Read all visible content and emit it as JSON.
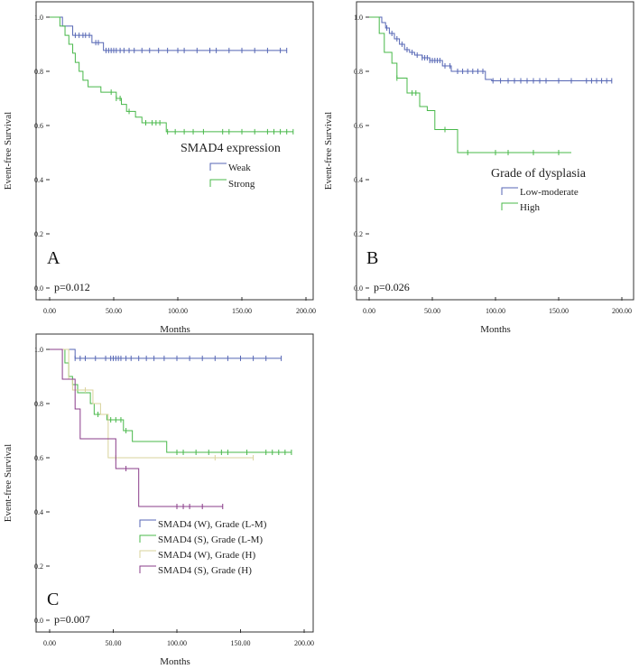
{
  "chart_data": [
    {
      "type": "line",
      "panel_label": "A",
      "xlabel": "Months",
      "ylabel": "Event-free Survival",
      "xlim": [
        0,
        200
      ],
      "ylim": [
        0,
        1
      ],
      "xticks": [
        "0.00",
        "50.00",
        "100.00",
        "150.00",
        "200.00"
      ],
      "yticks": [
        "0.0",
        "0.2",
        "0.4",
        "0.6",
        "0.8",
        "1.0"
      ],
      "legend_title": "SMAD4 expression",
      "legend_position": "center-right",
      "annotation": "p=0.012",
      "series": [
        {
          "name": "Weak",
          "color": "#5566b4",
          "steps": [
            [
              0,
              1.0
            ],
            [
              10,
              0.967
            ],
            [
              18,
              0.933
            ],
            [
              33,
              0.906
            ],
            [
              42,
              0.877
            ]
          ],
          "end_x": 185,
          "censored": [
            20,
            23,
            26,
            28,
            31,
            36,
            38,
            44,
            46,
            48,
            50,
            52,
            55,
            58,
            62,
            66,
            72,
            78,
            85,
            92,
            100,
            105,
            115,
            125,
            130,
            140,
            150,
            160,
            170,
            180,
            185
          ]
        },
        {
          "name": "Strong",
          "color": "#48b84a",
          "steps": [
            [
              0,
              1.0
            ],
            [
              8,
              0.967
            ],
            [
              12,
              0.933
            ],
            [
              15,
              0.9
            ],
            [
              18,
              0.867
            ],
            [
              20,
              0.833
            ],
            [
              23,
              0.8
            ],
            [
              26,
              0.767
            ],
            [
              30,
              0.743
            ],
            [
              40,
              0.723
            ],
            [
              52,
              0.7
            ],
            [
              56,
              0.678
            ],
            [
              60,
              0.652
            ],
            [
              67,
              0.631
            ],
            [
              72,
              0.61
            ],
            [
              91,
              0.577
            ]
          ],
          "end_x": 190,
          "censored": [
            48,
            52,
            55,
            62,
            75,
            80,
            83,
            86,
            92,
            98,
            105,
            112,
            120,
            135,
            140,
            150,
            160,
            170,
            175,
            180,
            185,
            190
          ]
        }
      ]
    },
    {
      "type": "line",
      "panel_label": "B",
      "xlabel": "Months",
      "ylabel": "Event-free Survival",
      "xlim": [
        0,
        200
      ],
      "ylim": [
        0,
        1
      ],
      "xticks": [
        "0.00",
        "50.00",
        "100.00",
        "150.00",
        "200.00"
      ],
      "yticks": [
        "0.0",
        "0.2",
        "0.4",
        "0.6",
        "0.8",
        "1.0"
      ],
      "legend_title": "Grade of dysplasia",
      "legend_position": "center-right",
      "annotation": "p=0.026",
      "series": [
        {
          "name": "Low-moderate",
          "color": "#5566b4",
          "steps": [
            [
              0,
              1.0
            ],
            [
              10,
              0.98
            ],
            [
              13,
              0.96
            ],
            [
              16,
              0.94
            ],
            [
              20,
              0.92
            ],
            [
              24,
              0.9
            ],
            [
              28,
              0.88
            ],
            [
              32,
              0.87
            ],
            [
              36,
              0.86
            ],
            [
              42,
              0.85
            ],
            [
              48,
              0.84
            ],
            [
              58,
              0.82
            ],
            [
              65,
              0.8
            ],
            [
              92,
              0.77
            ],
            [
              97,
              0.765
            ]
          ],
          "end_x": 192,
          "censored": [
            14,
            18,
            22,
            26,
            30,
            34,
            38,
            42,
            44,
            46,
            48,
            50,
            52,
            54,
            56,
            60,
            64,
            70,
            74,
            78,
            82,
            86,
            90,
            98,
            104,
            110,
            115,
            120,
            125,
            130,
            135,
            140,
            150,
            160,
            172,
            176,
            180,
            184,
            188,
            192
          ]
        },
        {
          "name": "High",
          "color": "#48b84a",
          "steps": [
            [
              0,
              1.0
            ],
            [
              8,
              0.94
            ],
            [
              12,
              0.87
            ],
            [
              18,
              0.83
            ],
            [
              22,
              0.775
            ],
            [
              30,
              0.72
            ],
            [
              40,
              0.67
            ],
            [
              46,
              0.655
            ],
            [
              52,
              0.585
            ],
            [
              70,
              0.5
            ]
          ],
          "end_x": 160,
          "censored": [
            22,
            34,
            37,
            60,
            78,
            100,
            110,
            130,
            150
          ]
        }
      ]
    },
    {
      "type": "line",
      "panel_label": "C",
      "xlabel": "Months",
      "ylabel": "Event-free Survival",
      "xlim": [
        0,
        200
      ],
      "ylim": [
        0,
        1
      ],
      "xticks": [
        "0.00",
        "50.00",
        "100.00",
        "150.00",
        "200.00"
      ],
      "yticks": [
        "0.0",
        "0.2",
        "0.4",
        "0.6",
        "0.8",
        "1.0"
      ],
      "legend_title": "",
      "legend_position": "bottom-center",
      "annotation": "p=0.007",
      "series": [
        {
          "name": "SMAD4 (W), Grade (L-M)",
          "color": "#5566b4",
          "steps": [
            [
              0,
              1.0
            ],
            [
              20,
              0.967
            ]
          ],
          "end_x": 182,
          "censored": [
            20,
            24,
            28,
            36,
            44,
            48,
            50,
            52,
            54,
            56,
            60,
            64,
            70,
            76,
            82,
            90,
            100,
            110,
            120,
            130,
            140,
            150,
            160,
            170,
            182
          ]
        },
        {
          "name": "SMAD4 (S), Grade (L-M)",
          "color": "#48b84a",
          "steps": [
            [
              0,
              1.0
            ],
            [
              12,
              0.95
            ],
            [
              15,
              0.9
            ],
            [
              18,
              0.87
            ],
            [
              22,
              0.84
            ],
            [
              32,
              0.8
            ],
            [
              35,
              0.76
            ],
            [
              45,
              0.74
            ],
            [
              58,
              0.7
            ],
            [
              65,
              0.66
            ],
            [
              92,
              0.62
            ]
          ],
          "end_x": 190,
          "censored": [
            38,
            48,
            52,
            56,
            60,
            100,
            105,
            115,
            125,
            135,
            140,
            155,
            170,
            175,
            180,
            185,
            190
          ]
        },
        {
          "name": "SMAD4 (W), Grade (H)",
          "color": "#d9d39b",
          "steps": [
            [
              0,
              1.0
            ],
            [
              15,
              0.89
            ],
            [
              18,
              0.85
            ],
            [
              34,
              0.8
            ],
            [
              40,
              0.76
            ],
            [
              46,
              0.6
            ]
          ],
          "end_x": 160,
          "censored": [
            28,
            52,
            130,
            160
          ]
        },
        {
          "name": "SMAD4 (S), Grade (H)",
          "color": "#8a3c8a",
          "steps": [
            [
              0,
              1.0
            ],
            [
              10,
              0.89
            ],
            [
              20,
              0.78
            ],
            [
              24,
              0.67
            ],
            [
              52,
              0.56
            ],
            [
              70,
              0.42
            ]
          ],
          "end_x": 136,
          "censored": [
            60,
            100,
            105,
            110,
            120,
            136
          ]
        }
      ]
    }
  ]
}
